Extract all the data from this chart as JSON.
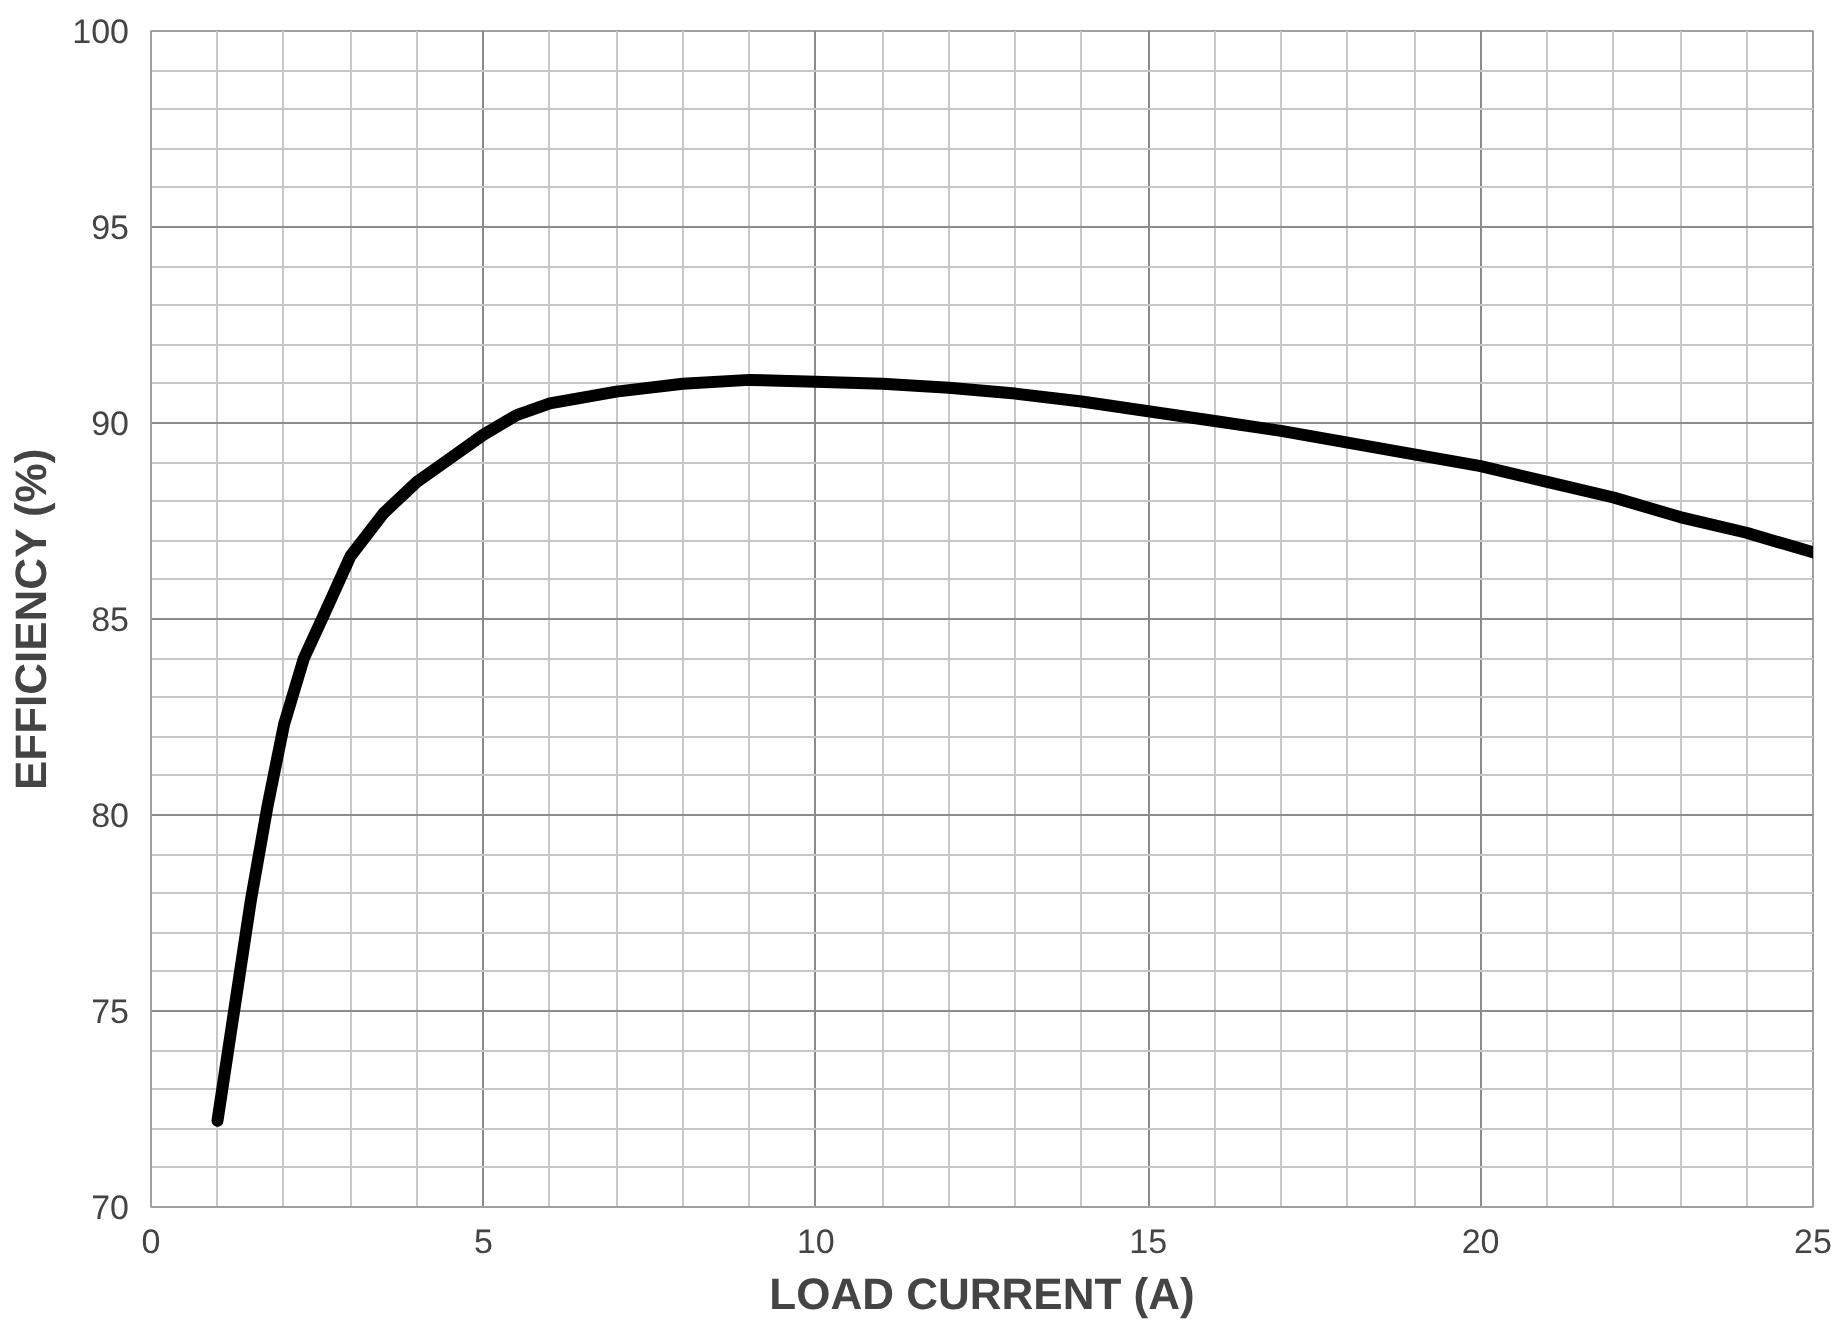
{
  "chart_data": {
    "type": "line",
    "xlabel": "LOAD CURRENT (A)",
    "ylabel": "EFFICIENCY (%)",
    "xlim": [
      0,
      25
    ],
    "ylim": [
      70,
      100
    ],
    "xticks": [
      0,
      5,
      10,
      15,
      20,
      25
    ],
    "yticks": [
      70,
      75,
      80,
      85,
      90,
      95,
      100
    ],
    "grid": true,
    "series": [
      {
        "color": "#000000",
        "x": [
          1,
          1.25,
          1.5,
          1.75,
          2,
          2.3,
          2.6,
          3,
          3.5,
          4,
          4.5,
          5,
          5.5,
          6,
          7,
          8,
          9,
          10,
          11,
          12,
          13,
          14,
          15,
          16,
          17,
          18,
          19,
          20,
          21,
          22,
          23,
          24,
          25
        ],
        "values": [
          72.2,
          75,
          77.8,
          80.2,
          82.3,
          84,
          85.1,
          86.6,
          87.7,
          88.5,
          89.1,
          89.7,
          90.2,
          90.5,
          90.8,
          91.0,
          91.1,
          91.05,
          91.0,
          90.9,
          90.75,
          90.55,
          90.3,
          90.05,
          89.8,
          89.5,
          89.2,
          88.9,
          88.5,
          88.1,
          87.6,
          87.2,
          86.7
        ]
      }
    ]
  }
}
